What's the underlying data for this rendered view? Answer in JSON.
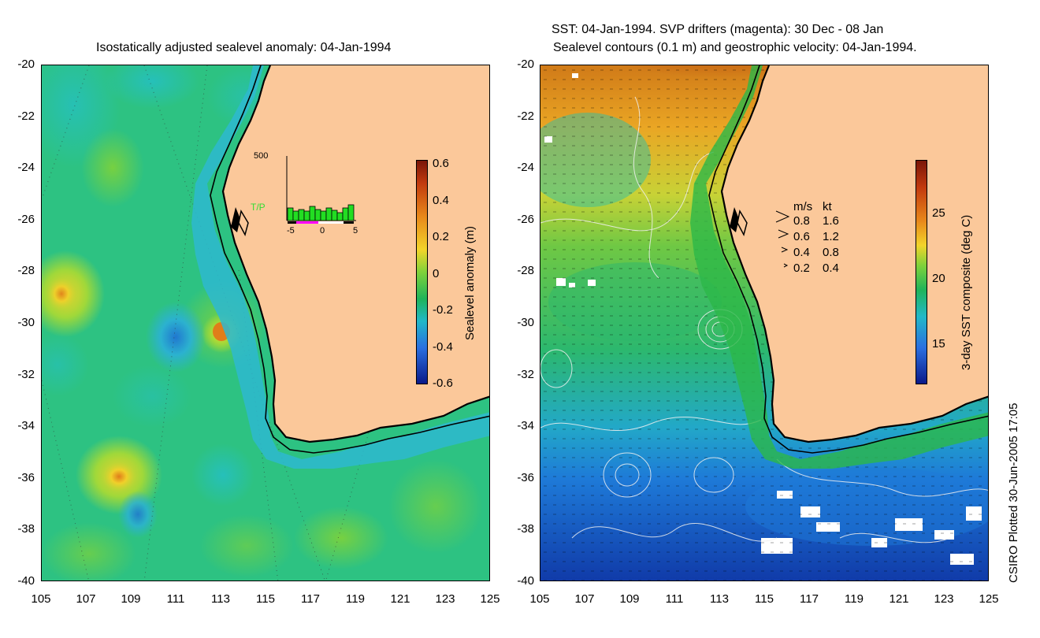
{
  "left": {
    "title": "Isostatically adjusted sealevel anomaly: 04-Jan-1994",
    "y_ticks": [
      "-20",
      "-22",
      "-24",
      "-26",
      "-28",
      "-30",
      "-32",
      "-34",
      "-36",
      "-38",
      "-40"
    ],
    "x_ticks": [
      "105",
      "107",
      "109",
      "111",
      "113",
      "115",
      "117",
      "119",
      "121",
      "123",
      "125"
    ],
    "colorbar": {
      "label": "Sealevel anomaly (m)",
      "ticks": [
        "0.6",
        "0.4",
        "0.2",
        "0",
        "-0.2",
        "-0.4",
        "-0.6"
      ]
    },
    "histogram": {
      "y_max": "500",
      "series_label": "T/P",
      "x_ticks": [
        "-5",
        "0",
        "5"
      ]
    }
  },
  "right": {
    "title_line1": "SST: 04-Jan-1994. SVP drifters (magenta): 30 Dec - 08 Jan",
    "title_line2": "Sealevel contours (0.1 m) and geostrophic velocity: 04-Jan-1994.",
    "y_ticks": [
      "-20",
      "-22",
      "-24",
      "-26",
      "-28",
      "-30",
      "-32",
      "-34",
      "-36",
      "-38",
      "-40"
    ],
    "x_ticks": [
      "105",
      "107",
      "109",
      "111",
      "113",
      "115",
      "117",
      "119",
      "121",
      "123",
      "125"
    ],
    "colorbar": {
      "label": "3-day SST composite (deg C)",
      "ticks": [
        "25",
        "20",
        "15"
      ]
    },
    "velocity_legend": {
      "header_ms": "m/s",
      "header_kt": "kt",
      "rows": [
        {
          "ms": "0.8",
          "kt": "1.6"
        },
        {
          "ms": "0.6",
          "kt": "1.2"
        },
        {
          "ms": "0.4",
          "kt": "0.8"
        },
        {
          "ms": "0.2",
          "kt": "0.4"
        }
      ]
    }
  },
  "credit": "CSIRO Plotted 30-Jun-2005 17:05",
  "colors": {
    "land": "#fbc89a",
    "ocean_left": "#2fbf6a",
    "ocean_right_warm": "#e8a020",
    "ocean_right_cold": "#1f6fd8"
  }
}
